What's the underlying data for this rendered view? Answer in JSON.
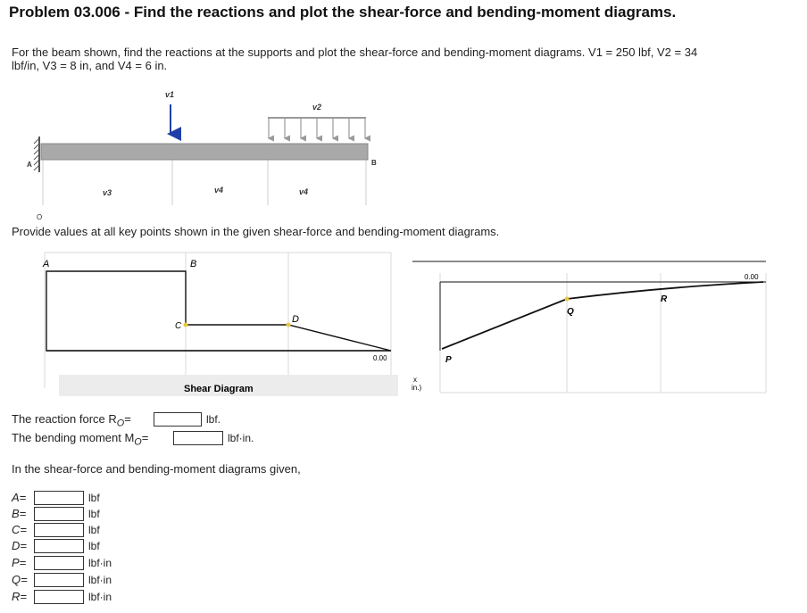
{
  "problem": {
    "title": "Problem 03.006 - Find the reactions and plot the shear-force and bending-moment diagrams.",
    "intro_line1": "For the beam shown, find the reactions at the supports and plot the shear-force and bending-moment diagrams. V1 = 250 lbf, V2 = 34",
    "intro_line2": "lbf/in, V3 = 8 in, and V4 = 6 in.",
    "instruction": "Provide values at all key points shown in the given shear-force and bending-moment diagrams."
  },
  "beam_figure": {
    "v1": "v1",
    "v2": "v2",
    "v3": "v3",
    "v4a": "v4",
    "v4b": "v4",
    "A": "A",
    "B": "B",
    "O": "O"
  },
  "shear_diagram": {
    "caption": "Shear Diagram",
    "A": "A",
    "B": "B",
    "C": "C",
    "D": "D",
    "zero": "0.00"
  },
  "moment_diagram": {
    "P": "P",
    "Q": "Q",
    "R": "R",
    "zero": "0.00",
    "x_label": "x",
    "x_unit": "in.)"
  },
  "reactions": {
    "ro_label": "The reaction force R",
    "ro_sub": "O",
    "ro_unit": "lbf.",
    "mo_label": "The bending moment M",
    "mo_sub": "O",
    "mo_unit": "lbf·in.",
    "ro_value": "",
    "mo_value": ""
  },
  "diagram_intro": "In the shear-force and bending-moment diagrams given,",
  "answers": [
    {
      "label": "A",
      "unit": "lbf",
      "value": ""
    },
    {
      "label": "B",
      "unit": "lbf",
      "value": ""
    },
    {
      "label": "C",
      "unit": "lbf",
      "value": ""
    },
    {
      "label": "D",
      "unit": "lbf",
      "value": ""
    },
    {
      "label": "P",
      "unit": "lbf·in",
      "value": ""
    },
    {
      "label": "Q",
      "unit": "lbf·in",
      "value": ""
    },
    {
      "label": "R",
      "unit": "lbf·in",
      "value": ""
    }
  ],
  "colors": {
    "beam": "#a9a9a9",
    "load_arrow": "#1f3fa8",
    "dist_load": "#9a9a9a",
    "highlight": "#e8c840"
  }
}
